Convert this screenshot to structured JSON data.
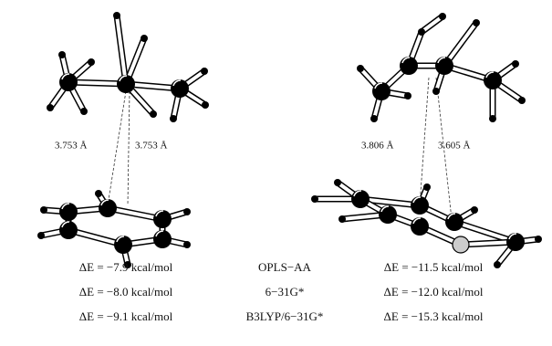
{
  "left": {
    "distances": [
      "3.753 Å",
      "3.753 Å"
    ]
  },
  "right": {
    "distances": [
      "3.806 Å",
      "3.605 Å"
    ]
  },
  "table": {
    "rows": [
      [
        "ΔE = −7.9 kcal/mol",
        "OPLS−AA",
        "ΔE = −11.5 kcal/mol"
      ],
      [
        "ΔE = −8.0 kcal/mol",
        "6−31G*",
        "ΔE = −12.0 kcal/mol"
      ],
      [
        "ΔE = −9.1 kcal/mol",
        "B3LYP/6−31G*",
        "ΔE = −15.3 kcal/mol"
      ]
    ]
  }
}
